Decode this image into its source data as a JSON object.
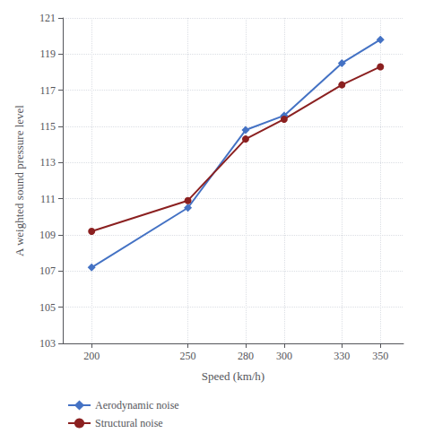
{
  "chart_data": {
    "type": "line",
    "x": [
      200,
      250,
      280,
      300,
      330,
      350
    ],
    "series": [
      {
        "name": "Aerodynamic noise",
        "color": "#4472C4",
        "marker": "diamond",
        "values": [
          107.2,
          110.5,
          114.8,
          115.6,
          118.5,
          119.8
        ]
      },
      {
        "name": "Structural noise",
        "color": "#8B2020",
        "marker": "circle",
        "values": [
          109.2,
          110.9,
          114.3,
          115.4,
          117.3,
          118.3
        ]
      }
    ],
    "xlabel": "Speed (km/h)",
    "ylabel": "A weighted sound pressure level",
    "xlim": [
      185,
      362
    ],
    "ylim": [
      103,
      121
    ],
    "xticks": [
      200,
      250,
      280,
      300,
      330,
      350
    ],
    "yticks": [
      103,
      105,
      107,
      109,
      111,
      113,
      115,
      117,
      119,
      121
    ],
    "grid": true,
    "legend": "bottom"
  }
}
